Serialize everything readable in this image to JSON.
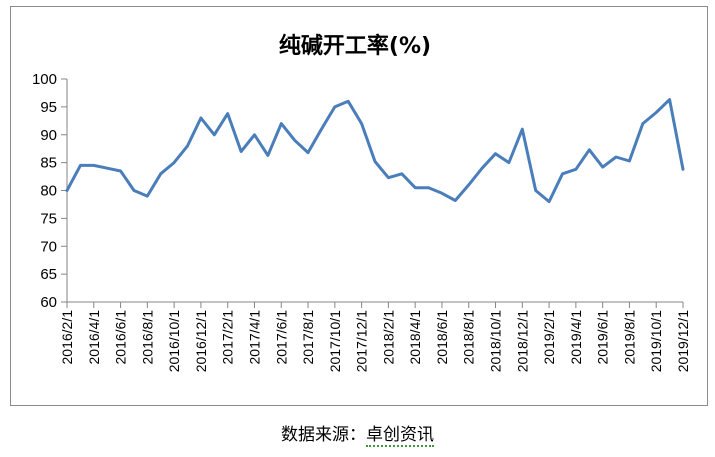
{
  "chart_data": {
    "type": "line",
    "title": "纯碱开工率(%)",
    "xlabel": "",
    "ylabel": "",
    "ylim": [
      60,
      100
    ],
    "yticks": [
      60,
      65,
      70,
      75,
      80,
      85,
      90,
      95,
      100
    ],
    "x_tick_labels": [
      "2016/2/1",
      "2016/4/1",
      "2016/6/1",
      "2016/8/1",
      "2016/10/1",
      "2016/12/1",
      "2017/2/1",
      "2017/4/1",
      "2017/6/1",
      "2017/8/1",
      "2017/10/1",
      "2017/12/1",
      "2018/2/1",
      "2018/4/1",
      "2018/6/1",
      "2018/8/1",
      "2018/10/1",
      "2018/12/1",
      "2019/2/1",
      "2019/4/1",
      "2019/6/1",
      "2019/8/1",
      "2019/10/1",
      "2019/12/1"
    ],
    "grid": false,
    "series": [
      {
        "color": "#4a7ebb",
        "x": [
          "2016/2/1",
          "2016/3/1",
          "2016/4/1",
          "2016/5/1",
          "2016/6/1",
          "2016/7/1",
          "2016/8/1",
          "2016/9/1",
          "2016/10/1",
          "2016/11/1",
          "2016/12/1",
          "2017/1/1",
          "2017/2/1",
          "2017/3/1",
          "2017/4/1",
          "2017/5/1",
          "2017/6/1",
          "2017/7/1",
          "2017/8/1",
          "2017/9/1",
          "2017/10/1",
          "2017/11/1",
          "2017/12/1",
          "2018/1/1",
          "2018/2/1",
          "2018/3/1",
          "2018/4/1",
          "2018/5/1",
          "2018/6/1",
          "2018/7/1",
          "2018/8/1",
          "2018/9/1",
          "2018/10/1",
          "2018/11/1",
          "2018/12/1",
          "2019/1/1",
          "2019/2/1",
          "2019/3/1",
          "2019/4/1",
          "2019/5/1",
          "2019/6/1",
          "2019/7/1",
          "2019/8/1",
          "2019/9/1",
          "2019/10/1",
          "2019/11/1",
          "2019/12/1"
        ],
        "values": [
          80.0,
          84.5,
          84.5,
          84.0,
          83.5,
          80.0,
          79.0,
          83.0,
          85.0,
          88.0,
          93.0,
          90.0,
          93.8,
          87.0,
          90.0,
          86.3,
          92.0,
          89.0,
          86.8,
          91.0,
          95.0,
          96.0,
          92.0,
          85.2,
          82.3,
          83.0,
          80.5,
          80.5,
          79.5,
          78.2,
          81.0,
          84.0,
          86.6,
          85.0,
          91.0,
          80.0,
          78.0,
          83.0,
          83.8,
          87.3,
          84.2,
          86.0,
          85.3,
          92.0,
          94.0,
          96.3,
          83.8
        ]
      }
    ]
  },
  "footer": {
    "source_label": "数据来源：",
    "source_name": "卓创资讯"
  }
}
